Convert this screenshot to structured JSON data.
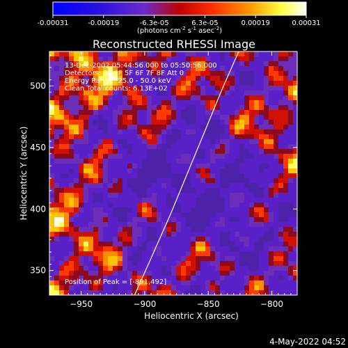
{
  "colorbar": {
    "ticks": [
      "-0.00031",
      "-0.00019",
      "-6.3e-05",
      "6.3e-05",
      "0.00019",
      "0.00031"
    ],
    "units_prefix": "(photons cm",
    "units_sup1": "-2",
    "units_mid": " s",
    "units_sup2": "-1",
    "units_mid2": " asec",
    "units_sup3": "-2",
    "units_suffix": ")",
    "range": [
      -0.00031,
      0.00031
    ]
  },
  "annotations": {
    "line1": "13-Dec-2002 05:44:56.000 to 05:50:56.000",
    "line2": "Detectors: 3F 4F 5F 6F 7F 8F  Att 0",
    "line3": "Energy Range: 25.0 - 50.0 keV",
    "line4": "Clean    Total counts: 6.13E+02",
    "peak": "Position of Peak = [-891,492]"
  },
  "footer_timestamp": "4-May-2022 04:52",
  "chart_data": {
    "type": "heatmap",
    "title": "Reconstructed RHESSI Image",
    "xlabel": "Heliocentric X (arcsec)",
    "ylabel": "Heliocentric Y (arcsec)",
    "xlim": [
      -975,
      -780
    ],
    "ylim": [
      330,
      528
    ],
    "x_ticks": [
      -950,
      -900,
      -850,
      -800
    ],
    "y_ticks": [
      350,
      400,
      450,
      500
    ],
    "x_tick_labels": [
      "−950",
      "−900",
      "−850",
      "−800"
    ],
    "y_tick_labels": [
      "350",
      "400",
      "450",
      "500"
    ],
    "limb_curve": [
      [
        -908,
        330
      ],
      [
        -895,
        360
      ],
      [
        -880,
        395
      ],
      [
        -866,
        430
      ],
      [
        -852,
        465
      ],
      [
        -838,
        500
      ],
      [
        -826,
        528
      ]
    ],
    "peak_position": [
      -891,
      492
    ],
    "colormap": [
      "#0000ff",
      "#5a20c8",
      "#ff0000",
      "#ff8c00",
      "#ffff00",
      "#ffffff"
    ]
  }
}
